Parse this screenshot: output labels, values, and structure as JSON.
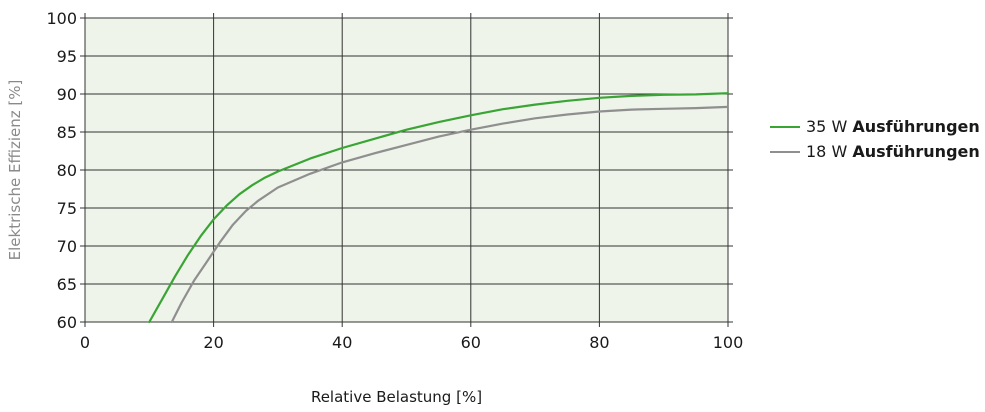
{
  "chart_data": {
    "type": "line",
    "xlabel": "Relative Belastung [%]",
    "ylabel": "Elektrische Effizienz [%]",
    "xlim": [
      0,
      100
    ],
    "ylim": [
      60,
      100
    ],
    "x_ticks": [
      0,
      20,
      40,
      60,
      80,
      100
    ],
    "y_ticks": [
      60,
      65,
      70,
      75,
      80,
      85,
      90,
      95,
      100
    ],
    "grid": true,
    "legend_position": "right",
    "colors": {
      "background": "#eef4ea",
      "grid": "#333333",
      "series_35W": "#3aa535",
      "series_18W": "#8f8f8f"
    },
    "series": [
      {
        "name": "35 W Ausführungen",
        "name_prefix": "35 W",
        "name_bold": "Ausführungen",
        "color": "#3aa535",
        "points": [
          [
            10,
            60
          ],
          [
            12,
            63
          ],
          [
            14,
            66
          ],
          [
            16,
            68.8
          ],
          [
            18,
            71.3
          ],
          [
            20,
            73.5
          ],
          [
            22,
            75.3
          ],
          [
            24,
            76.8
          ],
          [
            26,
            78
          ],
          [
            28,
            79
          ],
          [
            30,
            79.8
          ],
          [
            35,
            81.5
          ],
          [
            40,
            82.9
          ],
          [
            45,
            84.1
          ],
          [
            50,
            85.3
          ],
          [
            55,
            86.3
          ],
          [
            60,
            87.2
          ],
          [
            65,
            88
          ],
          [
            70,
            88.6
          ],
          [
            75,
            89.1
          ],
          [
            80,
            89.5
          ],
          [
            85,
            89.75
          ],
          [
            90,
            89.9
          ],
          [
            95,
            89.95
          ],
          [
            100,
            90.1
          ]
        ]
      },
      {
        "name": "18 W Ausführungen",
        "name_prefix": "18 W",
        "name_bold": "Ausführungen",
        "color": "#8f8f8f",
        "points": [
          [
            13.5,
            60
          ],
          [
            15,
            62.5
          ],
          [
            17,
            65.5
          ],
          [
            19,
            68
          ],
          [
            21,
            70.5
          ],
          [
            23,
            72.8
          ],
          [
            25,
            74.6
          ],
          [
            27,
            76
          ],
          [
            30,
            77.7
          ],
          [
            35,
            79.5
          ],
          [
            40,
            81
          ],
          [
            45,
            82.2
          ],
          [
            50,
            83.3
          ],
          [
            55,
            84.4
          ],
          [
            60,
            85.3
          ],
          [
            65,
            86.1
          ],
          [
            70,
            86.8
          ],
          [
            75,
            87.3
          ],
          [
            80,
            87.7
          ],
          [
            85,
            87.95
          ],
          [
            90,
            88.05
          ],
          [
            95,
            88.15
          ],
          [
            100,
            88.3
          ]
        ]
      }
    ]
  }
}
